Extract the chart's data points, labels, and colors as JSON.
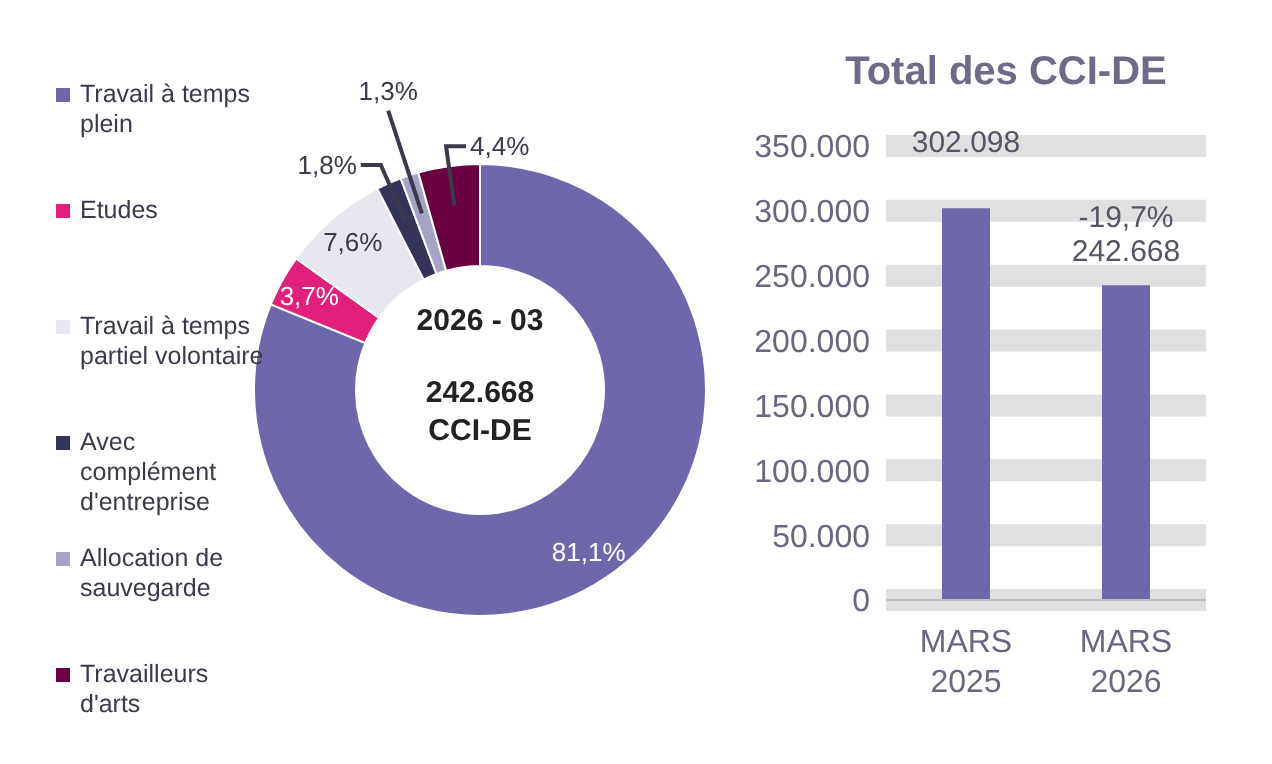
{
  "chart_data": [
    {
      "type": "donut",
      "categories": [
        "Travail à temps plein",
        "Etudes",
        "Travail à temps partiel volontaire",
        "Avec complément d'entreprise",
        "Allocation de sauvegarde",
        "Travailleurs d'arts"
      ],
      "values": [
        81.1,
        3.7,
        7.6,
        1.8,
        1.3,
        4.4
      ],
      "colors": [
        "#6e67ac",
        "#e0207a",
        "#e8e6ee",
        "#34345a",
        "#a6a3c8",
        "#6b0040"
      ],
      "value_labels": [
        "81,1%",
        "3,7%",
        "7,6%",
        "1,8%",
        "1,3%",
        "4,4%"
      ],
      "legend": "left",
      "annotations": [
        "2026 - 03",
        "242.668\nCCI-DE"
      ]
    },
    {
      "type": "bar",
      "title": "Total des CCI-DE",
      "categories": [
        "MARS 2025",
        "MARS 2026"
      ],
      "values": [
        302098,
        242668
      ],
      "color": "#6e67ac",
      "value_labels": [
        "302.098",
        "242.668"
      ],
      "ylim": [
        0,
        350000
      ],
      "yticks": [
        {
          "value": 0,
          "label": "0"
        },
        {
          "value": 50000,
          "label": "50.000"
        },
        {
          "value": 100000,
          "label": "100.000"
        },
        {
          "value": 150000,
          "label": "150.000"
        },
        {
          "value": 200000,
          "label": "200.000"
        },
        {
          "value": 250000,
          "label": "250.000"
        },
        {
          "value": 300000,
          "label": "300.000"
        },
        {
          "value": 350000,
          "label": "350.000"
        }
      ],
      "grid": "y",
      "annotations": [
        {
          "text": "-19,7%",
          "x": "MARS 2026",
          "y": 242668
        }
      ]
    }
  ]
}
